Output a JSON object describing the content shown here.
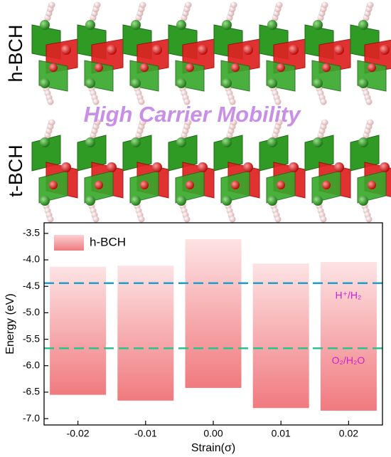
{
  "structure": {
    "labels": [
      "h-BCH",
      "t-BCH"
    ],
    "caption": "High Carrier Mobility"
  },
  "chart_data": {
    "type": "floating_bar",
    "x": [
      -0.02,
      -0.01,
      0,
      0.01,
      0.02
    ],
    "series": [
      {
        "name": "h-BCH",
        "color": "#f07a7f",
        "top": [
          -4.13,
          -4.11,
          -3.61,
          -4.07,
          -4.04
        ],
        "bottom": [
          -6.55,
          -6.66,
          -6.42,
          -6.8,
          -6.85
        ]
      }
    ],
    "reference_lines": [
      {
        "value": -4.44,
        "label": "H⁺/H₂",
        "color": "#1f9fcf"
      },
      {
        "value": -5.67,
        "label": "O₂/H₂O",
        "color": "#2cc28c"
      }
    ],
    "xlabel": "Strain(σ)",
    "ylabel": "Energy (eV)",
    "xlim": [
      -0.025,
      0.025
    ],
    "ylim": [
      -7.12,
      -3.3
    ],
    "xticks": [
      -0.02,
      -0.01,
      {
        "value": 0,
        "label": "0.00"
      },
      0.01,
      0.02
    ],
    "yticks": [
      -3.5,
      {
        "value": -4,
        "label": "-4.0"
      },
      -4.5,
      {
        "value": -5,
        "label": "-5.0"
      },
      -5.5,
      {
        "value": -6,
        "label": "-6.0"
      },
      -6.5,
      {
        "value": -7,
        "label": "-7.0"
      }
    ],
    "legend": "upper left"
  }
}
